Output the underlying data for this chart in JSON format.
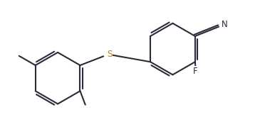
{
  "bg": "#ffffff",
  "lc": "#2a2a3a",
  "sc": "#b8860b",
  "lw": 1.5,
  "fs": 8.5,
  "dpi": 100,
  "figsize": [
    3.58,
    1.72
  ],
  "xlim": [
    -1.8,
    3.6
  ],
  "ylim": [
    -1.5,
    1.3
  ]
}
